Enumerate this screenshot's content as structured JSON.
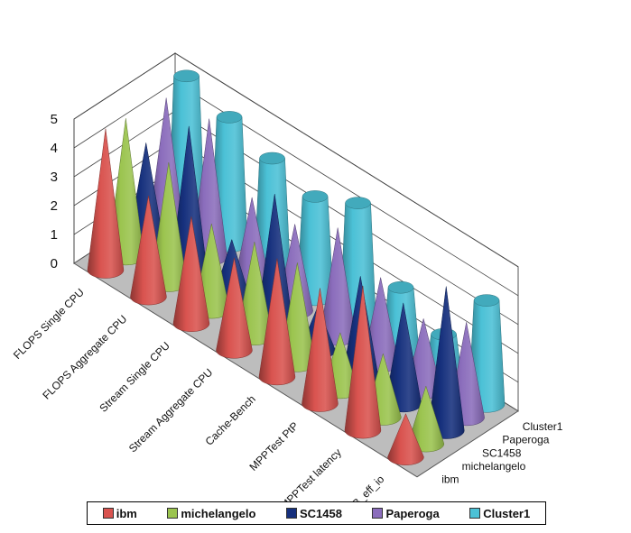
{
  "chart_data": {
    "type": "3d-cone",
    "categories": [
      "FLOPS Single CPU",
      "FLOPS Aggregate CPU",
      "Stream Single CPU",
      "Stream Aggregate CPU",
      "Cache-Bench",
      "MPPTest PtP",
      "MPPTest latency",
      "B_eff_io"
    ],
    "series": [
      {
        "name": "ibm",
        "color": "#d9534f",
        "shape": "cone",
        "values": [
          4.9,
          3.5,
          3.7,
          3.2,
          4.1,
          4.0,
          5.0,
          1.5
        ]
      },
      {
        "name": "michelangelo",
        "color": "#9bc44f",
        "shape": "cone",
        "values": [
          4.8,
          4.2,
          3.0,
          3.3,
          3.5,
          2.0,
          2.2,
          2.0
        ]
      },
      {
        "name": "SC1458",
        "color": "#16307d",
        "shape": "cone",
        "values": [
          3.5,
          5.0,
          2.0,
          4.5,
          1.5,
          3.5,
          3.5,
          5.0
        ]
      },
      {
        "name": "Paperoga",
        "color": "#8b6dbc",
        "shape": "cone",
        "values": [
          4.6,
          4.8,
          3.0,
          3.0,
          3.8,
          3.0,
          2.5,
          3.3
        ]
      },
      {
        "name": "Cluster1",
        "color": "#4bc1d6",
        "shape": "frustum",
        "values": [
          4.9,
          4.4,
          3.9,
          3.5,
          4.2,
          2.2,
          1.5,
          3.6
        ]
      }
    ],
    "ylim": [
      0,
      5
    ],
    "yticks": [
      "0",
      "1",
      "2",
      "3",
      "4",
      "5"
    ],
    "grid": true,
    "legend": "bottom"
  }
}
